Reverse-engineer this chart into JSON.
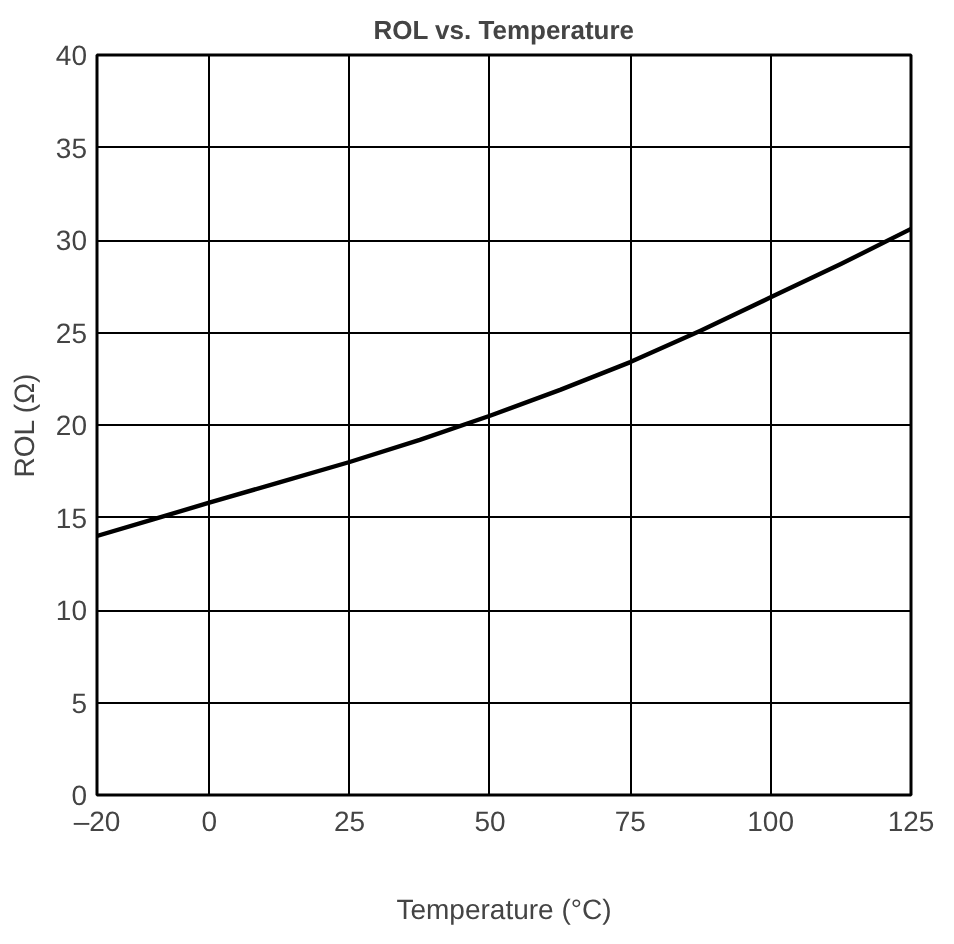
{
  "chart_data": {
    "type": "line",
    "title": "ROL vs. Temperature",
    "xlabel": "Temperature (°C)",
    "ylabel": "ROL (Ω)",
    "x": [
      -20,
      -10,
      0,
      12.5,
      25,
      37.5,
      50,
      62.5,
      75,
      87.5,
      100,
      112.5,
      125
    ],
    "series": [
      {
        "color": "#000000",
        "values": [
          14.0,
          14.9,
          15.8,
          16.9,
          18.0,
          19.2,
          20.5,
          21.9,
          23.4,
          25.1,
          26.9,
          28.7,
          30.6
        ]
      }
    ],
    "xlim": [
      -20,
      125
    ],
    "ylim": [
      0,
      40
    ],
    "xticks": [
      {
        "value": -20,
        "label": "–20"
      },
      0,
      25,
      50,
      75,
      100,
      125
    ],
    "yticks": [
      0,
      5,
      10,
      15,
      20,
      25,
      30,
      35,
      40
    ],
    "grid": true,
    "marker": "none",
    "line_style": "solid"
  }
}
